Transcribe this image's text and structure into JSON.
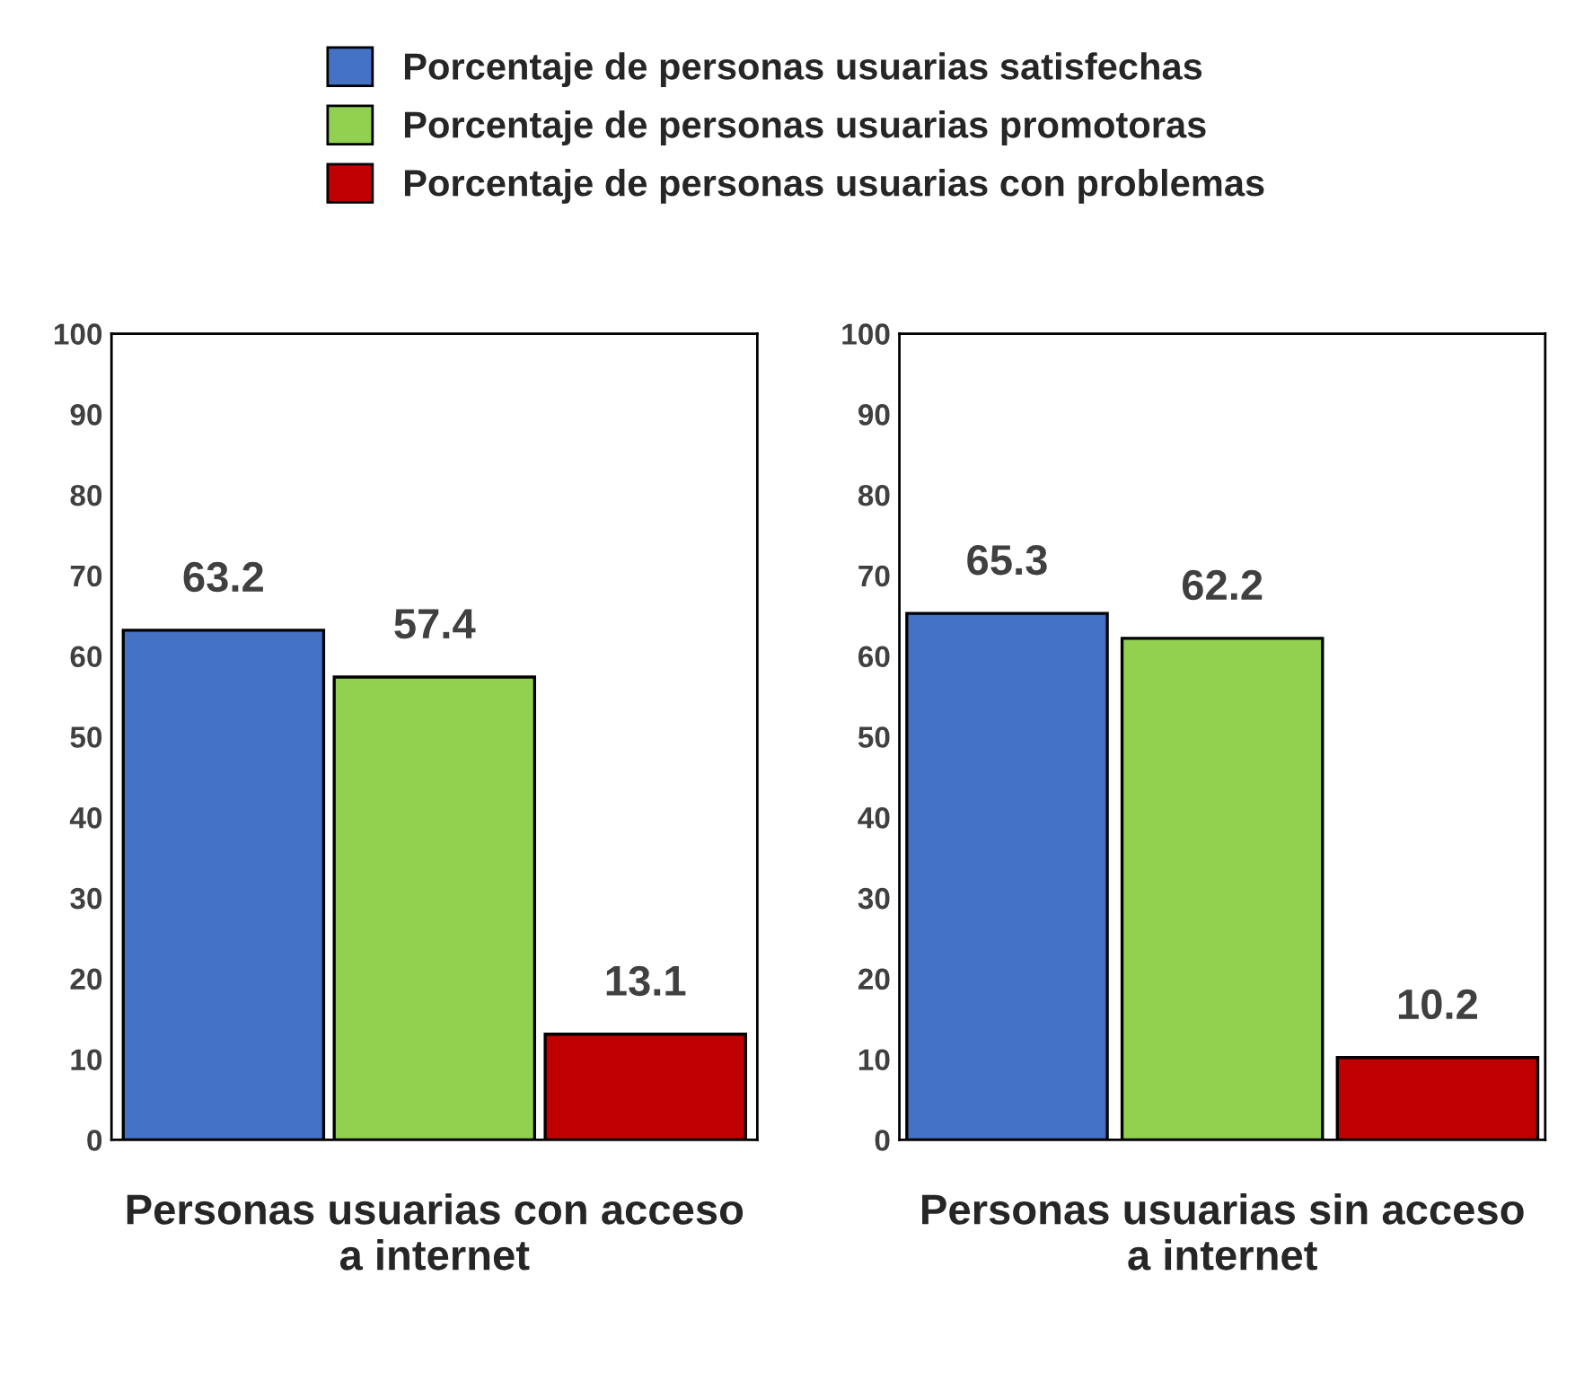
{
  "chart_data": [
    {
      "type": "bar",
      "xlabel": "Personas usuarias con acceso a internet",
      "categories": [
        null
      ],
      "ylim": [
        0,
        100
      ],
      "yticks": [
        0,
        10,
        20,
        30,
        40,
        50,
        60,
        70,
        80,
        90,
        100
      ],
      "data_labels": true,
      "grid": false,
      "legend": "top",
      "series": [
        {
          "name": "Porcentaje de personas usuarias satisfechas",
          "color": "#4472c4",
          "values": [
            63.2
          ]
        },
        {
          "name": "Porcentaje de personas usuarias promotoras",
          "color": "#92d050",
          "values": [
            57.4
          ]
        },
        {
          "name": "Porcentaje de personas usuarias con problemas",
          "color": "#c00000",
          "values": [
            13.1
          ]
        }
      ]
    },
    {
      "type": "bar",
      "xlabel": "Personas usuarias sin acceso a internet",
      "ylim": [
        0,
        100
      ],
      "yticks": [
        0,
        10,
        20,
        30,
        40,
        50,
        60,
        70,
        80,
        90,
        100
      ],
      "data_labels": true,
      "grid": false,
      "categories": [
        null,
        null,
        null
      ],
      "values": [
        65.3,
        62.2,
        10.2
      ],
      "colors": [
        "#4472c4",
        "#92d050",
        "#c00000"
      ]
    }
  ]
}
